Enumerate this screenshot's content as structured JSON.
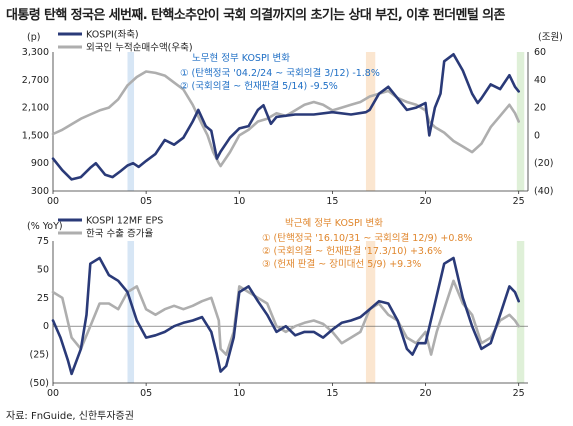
{
  "title": "대통령 탄핵 정국은 세번째. 탄핵소추안이 국회 의결까지의 초기는 상대 부진, 이후 펀더멘털 의존",
  "source": "자료: FnGuide, 신한투자증권",
  "colors": {
    "navy": "#2a3a78",
    "gray": "#aeaeae",
    "blue_text": "#1f6fc5",
    "orange_text": "#e0872e",
    "band_blue": "#d7e6f5",
    "band_orange": "#fbe6d0",
    "band_green": "#dff0d8"
  },
  "chart_data": [
    {
      "type": "line",
      "title": "",
      "xlabel": "",
      "x_ticks": [
        "00",
        "05",
        "10",
        "15",
        "20",
        "25"
      ],
      "x_range": [
        2000,
        2025.5
      ],
      "y_left": {
        "unit": "(p)",
        "ticks": [
          "300",
          "900",
          "1,500",
          "2,100",
          "2,700",
          "3,300"
        ],
        "range": [
          300,
          3300
        ]
      },
      "y_right": {
        "unit": "(조원)",
        "ticks": [
          "(40)",
          "(20)",
          "0",
          "20",
          "40",
          "60"
        ],
        "range": [
          -40,
          60
        ]
      },
      "series": [
        {
          "name": "KOSPI(좌축)",
          "axis": "left",
          "color": "#2a3a78",
          "x": [
            2000.0,
            2000.5,
            2001.0,
            2001.5,
            2002.0,
            2002.3,
            2002.8,
            2003.2,
            2003.6,
            2004.0,
            2004.3,
            2004.6,
            2005.0,
            2005.5,
            2006.0,
            2006.5,
            2007.0,
            2007.5,
            2007.8,
            2008.2,
            2008.5,
            2008.8,
            2009.0,
            2009.5,
            2010.0,
            2010.5,
            2011.0,
            2011.3,
            2011.7,
            2012.0,
            2013.0,
            2014.0,
            2015.0,
            2016.0,
            2016.8,
            2017.0,
            2017.5,
            2018.0,
            2018.5,
            2019.0,
            2019.5,
            2020.0,
            2020.2,
            2020.5,
            2020.8,
            2021.0,
            2021.5,
            2022.0,
            2022.5,
            2022.8,
            2023.0,
            2023.5,
            2024.0,
            2024.5,
            2024.8,
            2025.0
          ],
          "y": [
            1000,
            750,
            550,
            600,
            800,
            900,
            650,
            600,
            720,
            850,
            900,
            820,
            950,
            1100,
            1400,
            1300,
            1450,
            1800,
            2050,
            1700,
            1600,
            1000,
            1150,
            1450,
            1650,
            1700,
            2050,
            2150,
            1750,
            1900,
            1950,
            1950,
            2000,
            1950,
            2000,
            2050,
            2400,
            2550,
            2300,
            2050,
            2100,
            2200,
            1500,
            2100,
            2400,
            3100,
            3250,
            2900,
            2400,
            2200,
            2300,
            2600,
            2500,
            2800,
            2550,
            2450
          ]
        },
        {
          "name": "외국인 누적순매수액(우축)",
          "axis": "right",
          "color": "#aeaeae",
          "x": [
            2000.0,
            2000.5,
            2001.0,
            2001.5,
            2002.0,
            2002.5,
            2003.0,
            2003.5,
            2004.0,
            2004.5,
            2005.0,
            2005.5,
            2006.0,
            2006.5,
            2007.0,
            2007.5,
            2008.0,
            2008.3,
            2008.6,
            2008.9,
            2009.0,
            2009.5,
            2010.0,
            2010.5,
            2011.0,
            2011.5,
            2012.0,
            2012.5,
            2013.0,
            2013.5,
            2014.0,
            2014.5,
            2015.0,
            2015.5,
            2016.0,
            2016.5,
            2017.0,
            2017.5,
            2018.0,
            2018.5,
            2019.0,
            2019.5,
            2020.0,
            2020.2,
            2020.5,
            2021.0,
            2021.5,
            2022.0,
            2022.5,
            2023.0,
            2023.5,
            2024.0,
            2024.5,
            2024.8,
            2025.0
          ],
          "y": [
            1,
            4,
            8,
            12,
            15,
            18,
            20,
            26,
            36,
            42,
            46,
            45,
            43,
            38,
            33,
            22,
            8,
            0,
            -12,
            -20,
            -22,
            -12,
            0,
            4,
            10,
            12,
            16,
            14,
            18,
            22,
            24,
            22,
            18,
            20,
            22,
            24,
            28,
            30,
            32,
            27,
            24,
            22,
            18,
            10,
            6,
            2,
            -4,
            -8,
            -12,
            -6,
            6,
            14,
            22,
            16,
            10
          ]
        }
      ],
      "bands": [
        {
          "x": [
            2004.0,
            2004.35
          ],
          "color": "blue"
        },
        {
          "x": [
            2016.8,
            2017.3
          ],
          "color": "orange"
        },
        {
          "x": [
            2024.9,
            2025.3
          ],
          "color": "green"
        }
      ],
      "annotation": {
        "heading": "노무현 정부 KOSPI 변화",
        "lines": [
          "① (탄핵정국 '04.2/24 ~ 국회의결 3/12) -1.8%",
          "② (국회의결 ~ 헌재판결 5/14) -9.5%"
        ]
      }
    },
    {
      "type": "line",
      "title": "",
      "xlabel": "",
      "x_ticks": [
        "00",
        "05",
        "10",
        "15",
        "20",
        "25"
      ],
      "x_range": [
        2000,
        2025.5
      ],
      "y_left": {
        "unit": "(% YoY)",
        "ticks": [
          "(50)",
          "(25)",
          "0",
          "25",
          "50",
          "75"
        ],
        "range": [
          -50,
          75
        ]
      },
      "series": [
        {
          "name": "KOSPI 12MF EPS",
          "color": "#2a3a78",
          "x": [
            2000.0,
            2000.4,
            2000.8,
            2001.0,
            2001.5,
            2001.8,
            2002.0,
            2002.5,
            2003.0,
            2003.5,
            2004.0,
            2004.5,
            2005.0,
            2005.5,
            2006.0,
            2006.5,
            2007.0,
            2007.5,
            2008.0,
            2008.5,
            2008.8,
            2009.0,
            2009.3,
            2009.7,
            2010.0,
            2010.5,
            2011.0,
            2011.5,
            2012.0,
            2012.5,
            2013.0,
            2013.5,
            2014.0,
            2014.5,
            2015.0,
            2015.5,
            2016.0,
            2016.5,
            2017.0,
            2017.5,
            2018.0,
            2018.5,
            2019.0,
            2019.3,
            2019.6,
            2020.0,
            2020.5,
            2021.0,
            2021.5,
            2022.0,
            2022.5,
            2023.0,
            2023.5,
            2024.0,
            2024.5,
            2024.8,
            2025.0
          ],
          "y": [
            5,
            -10,
            -30,
            -42,
            -20,
            10,
            55,
            60,
            45,
            40,
            30,
            5,
            -10,
            -8,
            -5,
            0,
            3,
            5,
            8,
            -5,
            -25,
            -40,
            -35,
            -10,
            30,
            35,
            22,
            10,
            -5,
            0,
            -8,
            -5,
            -5,
            -10,
            -3,
            3,
            5,
            8,
            15,
            22,
            20,
            5,
            -20,
            -25,
            -15,
            -15,
            20,
            55,
            60,
            25,
            0,
            -20,
            -15,
            10,
            35,
            30,
            22
          ]
        },
        {
          "name": "한국 수출 증가율",
          "color": "#aeaeae",
          "x": [
            2000.0,
            2000.5,
            2001.0,
            2001.5,
            2002.0,
            2002.5,
            2003.0,
            2003.5,
            2004.0,
            2004.5,
            2005.0,
            2005.5,
            2006.0,
            2006.5,
            2007.0,
            2007.5,
            2008.0,
            2008.5,
            2008.9,
            2009.0,
            2009.3,
            2009.7,
            2010.0,
            2010.5,
            2011.0,
            2011.5,
            2012.0,
            2012.5,
            2013.0,
            2013.5,
            2014.0,
            2014.5,
            2015.0,
            2015.5,
            2016.0,
            2016.5,
            2017.0,
            2017.5,
            2018.0,
            2018.5,
            2019.0,
            2019.5,
            2020.0,
            2020.3,
            2020.6,
            2021.0,
            2021.5,
            2022.0,
            2022.5,
            2023.0,
            2023.5,
            2024.0,
            2024.5,
            2024.8,
            2025.0
          ],
          "y": [
            30,
            25,
            -10,
            -20,
            0,
            20,
            20,
            15,
            30,
            35,
            15,
            10,
            15,
            18,
            15,
            18,
            22,
            25,
            5,
            -20,
            -25,
            -5,
            35,
            30,
            25,
            20,
            0,
            -5,
            0,
            3,
            5,
            2,
            -5,
            -15,
            -10,
            -5,
            15,
            20,
            10,
            5,
            -10,
            -15,
            -5,
            -25,
            -5,
            15,
            40,
            20,
            10,
            -15,
            -10,
            5,
            10,
            5,
            0
          ]
        }
      ],
      "bands": [
        {
          "x": [
            2004.0,
            2004.35
          ],
          "color": "blue"
        },
        {
          "x": [
            2016.8,
            2017.3
          ],
          "color": "orange"
        },
        {
          "x": [
            2024.9,
            2025.3
          ],
          "color": "green"
        }
      ],
      "annotation": {
        "heading": "박근혜 정부 KOSPI 변화",
        "lines": [
          "① (탄핵정국 '16.10/31 ~ 국회의결 12/9) +0.8%",
          "② (국회의결 ~ 헌재판결 '17.3/10) +3.6%",
          "③ (헌재 판결 ~ 장미대선 5/9) +9.3%"
        ]
      }
    }
  ]
}
